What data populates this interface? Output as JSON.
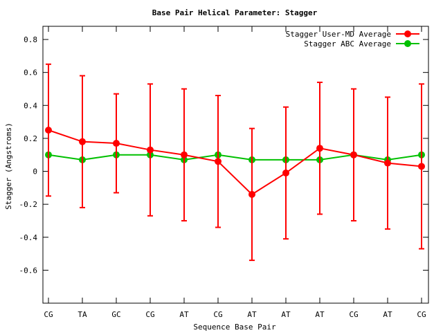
{
  "chart_data": {
    "type": "line",
    "title": "Base Pair Helical Parameter: Stagger",
    "xlabel": "Sequence Base Pair",
    "ylabel": "Stagger (Angstroms)",
    "categories": [
      "CG",
      "TA",
      "GC",
      "CG",
      "AT",
      "CG",
      "AT",
      "AT",
      "AT",
      "CG",
      "AT",
      "CG"
    ],
    "ylim": [
      -0.8,
      0.88
    ],
    "yticks": [
      -0.6,
      -0.4,
      -0.2,
      0,
      0.2,
      0.4,
      0.6,
      0.8
    ],
    "ytick_labels": [
      "-0.6",
      "-0.4",
      "-0.2",
      "0",
      "0.2",
      "0.4",
      "0.6",
      "0.8"
    ],
    "grid": false,
    "legend_position": "top-right",
    "series": [
      {
        "name": "Stagger User-MD Average",
        "color": "#ff0000",
        "values": [
          0.25,
          0.18,
          0.17,
          0.13,
          0.1,
          0.06,
          -0.14,
          -0.01,
          0.14,
          0.1,
          0.05,
          0.03
        ],
        "error_low": [
          -0.15,
          -0.22,
          -0.13,
          -0.27,
          -0.3,
          -0.34,
          -0.54,
          -0.41,
          -0.26,
          -0.3,
          -0.35,
          -0.47
        ],
        "error_high": [
          0.65,
          0.58,
          0.47,
          0.53,
          0.5,
          0.46,
          0.26,
          0.39,
          0.54,
          0.5,
          0.45,
          0.53
        ]
      },
      {
        "name": "Stagger ABC Average",
        "color": "#00c000",
        "values": [
          0.1,
          0.07,
          0.1,
          0.1,
          0.07,
          0.1,
          0.07,
          0.07,
          0.07,
          0.1,
          0.07,
          0.1
        ]
      }
    ]
  }
}
